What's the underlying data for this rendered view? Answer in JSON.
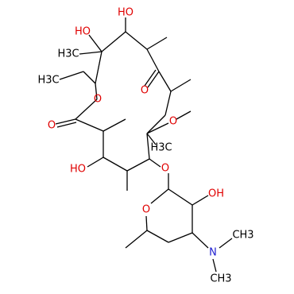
{
  "atoms": [
    {
      "label": "HO"
    },
    {
      "label": "HO"
    },
    {
      "label": "H3C"
    },
    {
      "label": "H3C"
    },
    {
      "label": "O"
    },
    {
      "label": "O"
    },
    {
      "label": "O"
    },
    {
      "label": "O"
    },
    {
      "label": "H3C"
    },
    {
      "label": "HO"
    },
    {
      "label": "O"
    },
    {
      "label": "OH"
    },
    {
      "label": "O"
    },
    {
      "label": "N"
    },
    {
      "label": "CH3"
    },
    {
      "label": "CH3"
    }
  ]
}
